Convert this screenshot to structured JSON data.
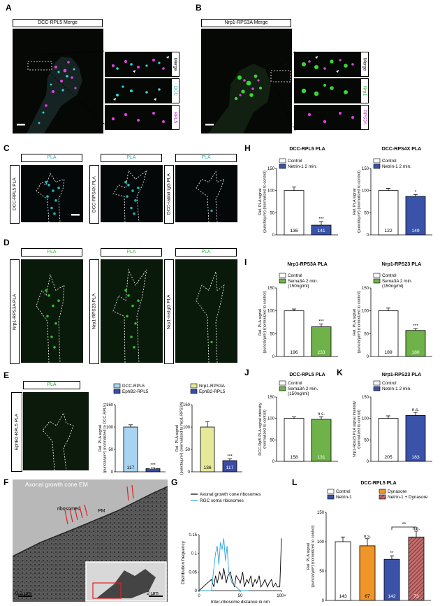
{
  "panels": {
    "A": {
      "letter": "A",
      "header": "DCC-RPL5 Merge",
      "side_labels": [
        "Merge",
        "DCC",
        "RPL5"
      ]
    },
    "B": {
      "letter": "B",
      "header": "Nrp1-RPS3A Merge",
      "side_labels": [
        "Merge",
        "Nrp1",
        "RPS3A"
      ]
    },
    "C": {
      "letter": "C",
      "header": "PLA",
      "rows": [
        "DCC-RPL5 PLA",
        "DCC-RPS4X PLA",
        "DCC-rabbit IgG PLA"
      ]
    },
    "D": {
      "letter": "D",
      "header": "PLA",
      "rows": [
        "Nrp1-RPS3A PLA",
        "Nrp1-RPS23 PLA",
        "Nrp1-msIgG PLA"
      ]
    },
    "E": {
      "letter": "E",
      "header": "PLA",
      "row": "EphB2-RPL5 PLA"
    },
    "F": {
      "letter": "F",
      "title": "Axonal growth cone EM",
      "labels": [
        "ribosomes",
        "PM"
      ],
      "scale1": "0.2 μm",
      "scale2": "2 μm"
    },
    "G": {
      "letter": "G"
    },
    "H": {
      "letter": "H"
    },
    "I": {
      "letter": "I"
    },
    "J": {
      "letter": "J"
    },
    "K": {
      "letter": "K"
    },
    "L": {
      "letter": "L"
    }
  },
  "chart_data": [
    {
      "id": "E1",
      "type": "bar",
      "title": "",
      "ylabel": "Rel. PLA signal (puncta/μm²) (normalized to DCC-RPL5)",
      "ylim": [
        0,
        150
      ],
      "yticks": [
        0,
        50,
        100,
        150
      ],
      "categories": [
        "DCC-RPL5",
        "EphB2-RPL5"
      ],
      "values": [
        100,
        7
      ],
      "errors": [
        5,
        2
      ],
      "n": [
        "117",
        "117"
      ],
      "sig": [
        "",
        "***"
      ],
      "colors": [
        "#a8d4f2",
        "#3a4aa8"
      ],
      "legend": [
        "DCC-RPL5",
        "EphB2-RPL5"
      ]
    },
    {
      "id": "E2",
      "type": "bar",
      "title": "",
      "ylabel": "Rel. PLA signal (puncta/μm²) (normalized to Nrp1-RPS3A)",
      "ylim": [
        0,
        150
      ],
      "yticks": [
        0,
        50,
        100,
        150
      ],
      "categories": [
        "Nrp1-RPS3A",
        "EphB2-RPL5"
      ],
      "values": [
        100,
        25
      ],
      "errors": [
        12,
        4
      ],
      "n": [
        "136",
        "117"
      ],
      "sig": [
        "",
        "***"
      ],
      "colors": [
        "#e6e89a",
        "#3a4aa8"
      ],
      "legend": [
        "Nrp1-RPS3A",
        "EphB2-RPL5"
      ]
    },
    {
      "id": "H1",
      "type": "bar",
      "title": "DCC-RPL5 PLA",
      "ylabel": "Rel. PLA signal (puncta/μm²) (normalized to control)",
      "ylim": [
        0,
        150
      ],
      "yticks": [
        0,
        50,
        100,
        150
      ],
      "categories": [
        "Control",
        "Netrin-1 2 min."
      ],
      "values": [
        100,
        22
      ],
      "errors": [
        8,
        8
      ],
      "n": [
        "136",
        "141"
      ],
      "sig": [
        "",
        "***"
      ],
      "colors": [
        "#ffffff",
        "#3a52a8"
      ],
      "legend": [
        "Control",
        "Netrin-1 2 min."
      ]
    },
    {
      "id": "H2",
      "type": "bar",
      "title": "DCC-RPS4X PLA",
      "ylabel": "Rel. PLA signal (puncta/μm²) (normalized to control)",
      "ylim": [
        0,
        150
      ],
      "yticks": [
        0,
        50,
        100,
        150
      ],
      "categories": [
        "Control",
        "Netrin-1 2 min."
      ],
      "values": [
        100,
        87
      ],
      "errors": [
        5,
        4
      ],
      "n": [
        "122",
        "149"
      ],
      "sig": [
        "",
        "*"
      ],
      "colors": [
        "#ffffff",
        "#3a52a8"
      ],
      "legend": [
        "Control",
        "Netrin-1 2 min."
      ]
    },
    {
      "id": "I1",
      "type": "bar",
      "title": "Nrp1-RPS3A PLA",
      "ylabel": "Rel. PLA signal (puncta/μm²) (normalized to control)",
      "ylim": [
        0,
        150
      ],
      "yticks": [
        0,
        50,
        100,
        150
      ],
      "categories": [
        "Control",
        "Sema3A 2 min."
      ],
      "values": [
        100,
        65
      ],
      "errors": [
        4,
        6
      ],
      "n": [
        "196",
        "233"
      ],
      "sig": [
        "",
        "***"
      ],
      "colors": [
        "#ffffff",
        "#6fb24a"
      ],
      "legend": [
        "Control",
        "Sema3A 2 min. (150ng/ml)"
      ]
    },
    {
      "id": "I2",
      "type": "bar",
      "title": "Nrp1-RPS23 PLA",
      "ylabel": "Rel. PLA signal (puncta/μm²) (normalized to control)",
      "ylim": [
        0,
        150
      ],
      "yticks": [
        0,
        50,
        100,
        150
      ],
      "categories": [
        "Control",
        "Sema3A 2 min."
      ],
      "values": [
        100,
        57
      ],
      "errors": [
        6,
        4
      ],
      "n": [
        "189",
        "180"
      ],
      "sig": [
        "",
        "***"
      ],
      "colors": [
        "#ffffff",
        "#6fb24a"
      ],
      "legend": [
        "Control",
        "Sema3A 2 min. (150ng/ml)"
      ]
    },
    {
      "id": "J",
      "type": "bar",
      "title": "DCC-RPL5 PLA",
      "ylabel": "DCC-Rpl5 PLA signal intensity (normalized to control)",
      "ylim": [
        0,
        150
      ],
      "yticks": [
        0,
        50,
        100,
        150
      ],
      "categories": [
        "Control",
        "Sema3A 2 min."
      ],
      "values": [
        100,
        98
      ],
      "errors": [
        4,
        6
      ],
      "n": [
        "158",
        "131"
      ],
      "sig": [
        "",
        "n.s."
      ],
      "colors": [
        "#ffffff",
        "#6fb24a"
      ],
      "legend": [
        "Control",
        "Sema3A 2 min. (150ng/ml)"
      ]
    },
    {
      "id": "K",
      "type": "bar",
      "title": "Nrp1-RPS23 PLA",
      "ylabel": "Nrp1-Rps23 PLA signal intensity (normalized to control)",
      "ylim": [
        0,
        150
      ],
      "yticks": [
        0,
        50,
        100,
        150
      ],
      "categories": [
        "Control",
        "Netrin-1 2 min."
      ],
      "values": [
        100,
        107
      ],
      "errors": [
        6,
        7
      ],
      "n": [
        "205",
        "183"
      ],
      "sig": [
        "",
        "n.s."
      ],
      "colors": [
        "#ffffff",
        "#3a52a8"
      ],
      "legend": [
        "Control",
        "Netrin-1 2 min."
      ]
    },
    {
      "id": "L",
      "type": "bar",
      "title": "DCC-RPL5 PLA",
      "ylabel": "Rel. PLA signal (puncta/μm²) (normalized to control)",
      "ylim": [
        0,
        150
      ],
      "yticks": [
        0,
        50,
        100,
        150
      ],
      "categories": [
        "Control",
        "Dynasore",
        "Netrin-1",
        "Netrin-1 + Dynasore"
      ],
      "values": [
        100,
        93,
        70,
        108
      ],
      "errors": [
        8,
        12,
        6,
        10
      ],
      "n": [
        "143",
        "67",
        "142",
        "73"
      ],
      "sig": [
        "",
        "n.s.",
        "**",
        "n.s."
      ],
      "bracket": "**",
      "colors": [
        "#ffffff",
        "#f0952a",
        "#3a52a8",
        "hatch"
      ],
      "legend": [
        "Control",
        "Dynasore",
        "Netrin-1",
        "Netrin-1 + Dynasore"
      ]
    },
    {
      "id": "G",
      "type": "line",
      "title": "",
      "xlabel": "Inter-ribosome distance in nm",
      "ylabel": "Distribution frequency",
      "ylim": [
        0,
        0.15
      ],
      "yticks": [
        "0",
        "0.05",
        "0.1",
        "0.15"
      ],
      "xticks": [
        "0",
        "50",
        "100+"
      ],
      "series": [
        {
          "name": "Axonal growth cone ribosomes",
          "color": "#000000",
          "x": [
            0,
            10,
            15,
            18,
            20,
            22,
            25,
            28,
            30,
            33,
            35,
            38,
            40,
            43,
            45,
            48,
            50,
            53,
            55,
            58,
            60,
            63,
            65,
            68,
            70,
            73,
            75,
            78,
            80,
            83,
            85,
            88,
            90,
            93,
            95,
            98,
            100
          ],
          "y": [
            0,
            0.02,
            0.03,
            0.01,
            0.04,
            0.02,
            0.05,
            0.03,
            0.06,
            0.02,
            0.04,
            0.05,
            0.03,
            0.01,
            0.04,
            0.03,
            0.02,
            0.05,
            0.01,
            0.03,
            0.02,
            0.04,
            0.01,
            0.03,
            0.02,
            0.04,
            0.01,
            0.02,
            0.03,
            0.01,
            0.02,
            0.03,
            0.01,
            0.02,
            0.01,
            0.01,
            0.14
          ]
        },
        {
          "name": "RGC soma ribosomes",
          "color": "#29a3e0",
          "x": [
            0,
            15,
            18,
            20,
            22,
            24,
            26,
            28,
            30,
            32,
            34,
            36,
            40,
            45,
            50,
            55,
            60
          ],
          "y": [
            0,
            0.0,
            0.06,
            0.1,
            0.12,
            0.07,
            0.13,
            0.11,
            0.14,
            0.08,
            0.12,
            0.05,
            0.02,
            0.01,
            0.0,
            0.0,
            0.0
          ]
        }
      ]
    }
  ]
}
